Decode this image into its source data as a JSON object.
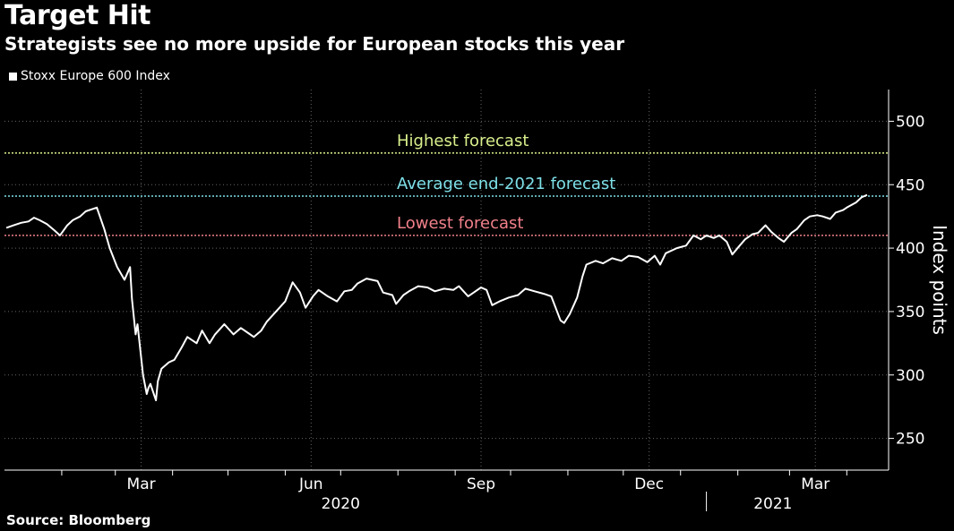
{
  "header": {
    "title": "Target Hit",
    "subtitle": "Strategists see no more upside for European stocks this year"
  },
  "legend": {
    "label": "Stoxx Europe 600 Index"
  },
  "source": "Source: Bloomberg",
  "colors": {
    "background": "#000000",
    "series": "#ffffff",
    "highest": "#d8ef8c",
    "average": "#7ee0e8",
    "lowest": "#f0808a",
    "grid": "#666666"
  },
  "chart_data": {
    "type": "line",
    "title": "Target Hit",
    "subtitle": "Strategists see no more upside for European stocks this year",
    "ylabel": "Index points",
    "ylim": [
      225,
      525
    ],
    "yticks": [
      250,
      300,
      350,
      400,
      450,
      500
    ],
    "xlim": [
      "2020-01-01",
      "2021-04-12"
    ],
    "xticks": [
      {
        "label": "Mar",
        "date": "2020-03-15"
      },
      {
        "label": "Jun",
        "date": "2020-06-15"
      },
      {
        "label": "Sep",
        "date": "2020-09-15"
      },
      {
        "label": "Dec",
        "date": "2020-12-15"
      },
      {
        "label": "Mar",
        "date": "2021-03-15"
      }
    ],
    "years": [
      {
        "label": "2020",
        "date": "2020-07-01"
      },
      {
        "label": "2021",
        "date": "2021-02-20"
      }
    ],
    "year_separator": "2021-01-15",
    "grid": true,
    "legend_position": "top-left",
    "reference_lines": [
      {
        "name": "Highest forecast",
        "value": 475,
        "color_key": "highest"
      },
      {
        "name": "Average end-2021 forecast",
        "value": 441,
        "color_key": "average"
      },
      {
        "name": "Lowest forecast",
        "value": 410,
        "color_key": "lowest"
      }
    ],
    "series": [
      {
        "name": "Stoxx Europe 600 Index",
        "points": [
          [
            "2020-01-02",
            416
          ],
          [
            "2020-01-06",
            418
          ],
          [
            "2020-01-10",
            420
          ],
          [
            "2020-01-14",
            421
          ],
          [
            "2020-01-17",
            424
          ],
          [
            "2020-01-20",
            422
          ],
          [
            "2020-01-24",
            419
          ],
          [
            "2020-01-28",
            414
          ],
          [
            "2020-01-31",
            410
          ],
          [
            "2020-02-04",
            418
          ],
          [
            "2020-02-07",
            422
          ],
          [
            "2020-02-11",
            425
          ],
          [
            "2020-02-14",
            429
          ],
          [
            "2020-02-18",
            431
          ],
          [
            "2020-02-20",
            432
          ],
          [
            "2020-02-24",
            415
          ],
          [
            "2020-02-27",
            400
          ],
          [
            "2020-03-02",
            385
          ],
          [
            "2020-03-06",
            375
          ],
          [
            "2020-03-09",
            385
          ],
          [
            "2020-03-10",
            360
          ],
          [
            "2020-03-12",
            332
          ],
          [
            "2020-03-13",
            340
          ],
          [
            "2020-03-16",
            300
          ],
          [
            "2020-03-18",
            285
          ],
          [
            "2020-03-19",
            290
          ],
          [
            "2020-03-20",
            293
          ],
          [
            "2020-03-23",
            280
          ],
          [
            "2020-03-24",
            295
          ],
          [
            "2020-03-26",
            305
          ],
          [
            "2020-03-30",
            310
          ],
          [
            "2020-04-02",
            312
          ],
          [
            "2020-04-06",
            322
          ],
          [
            "2020-04-09",
            330
          ],
          [
            "2020-04-14",
            325
          ],
          [
            "2020-04-17",
            335
          ],
          [
            "2020-04-21",
            325
          ],
          [
            "2020-04-24",
            332
          ],
          [
            "2020-04-29",
            340
          ],
          [
            "2020-05-04",
            332
          ],
          [
            "2020-05-08",
            337
          ],
          [
            "2020-05-12",
            333
          ],
          [
            "2020-05-15",
            330
          ],
          [
            "2020-05-19",
            335
          ],
          [
            "2020-05-22",
            342
          ],
          [
            "2020-05-27",
            350
          ],
          [
            "2020-06-01",
            358
          ],
          [
            "2020-06-05",
            373
          ],
          [
            "2020-06-09",
            365
          ],
          [
            "2020-06-12",
            353
          ],
          [
            "2020-06-16",
            362
          ],
          [
            "2020-06-19",
            367
          ],
          [
            "2020-06-24",
            362
          ],
          [
            "2020-06-29",
            358
          ],
          [
            "2020-07-03",
            366
          ],
          [
            "2020-07-07",
            367
          ],
          [
            "2020-07-10",
            372
          ],
          [
            "2020-07-15",
            376
          ],
          [
            "2020-07-21",
            374
          ],
          [
            "2020-07-24",
            365
          ],
          [
            "2020-07-29",
            363
          ],
          [
            "2020-07-31",
            356
          ],
          [
            "2020-08-04",
            363
          ],
          [
            "2020-08-07",
            366
          ],
          [
            "2020-08-12",
            370
          ],
          [
            "2020-08-17",
            369
          ],
          [
            "2020-08-21",
            366
          ],
          [
            "2020-08-26",
            368
          ],
          [
            "2020-08-31",
            367
          ],
          [
            "2020-09-03",
            370
          ],
          [
            "2020-09-08",
            362
          ],
          [
            "2020-09-11",
            365
          ],
          [
            "2020-09-15",
            369
          ],
          [
            "2020-09-18",
            367
          ],
          [
            "2020-09-21",
            355
          ],
          [
            "2020-09-25",
            358
          ],
          [
            "2020-09-30",
            361
          ],
          [
            "2020-10-05",
            363
          ],
          [
            "2020-10-09",
            368
          ],
          [
            "2020-10-14",
            366
          ],
          [
            "2020-10-19",
            364
          ],
          [
            "2020-10-23",
            362
          ],
          [
            "2020-10-28",
            343
          ],
          [
            "2020-10-30",
            341
          ],
          [
            "2020-11-02",
            348
          ],
          [
            "2020-11-06",
            361
          ],
          [
            "2020-11-09",
            378
          ],
          [
            "2020-11-11",
            387
          ],
          [
            "2020-11-16",
            390
          ],
          [
            "2020-11-20",
            388
          ],
          [
            "2020-11-25",
            392
          ],
          [
            "2020-11-30",
            390
          ],
          [
            "2020-12-04",
            394
          ],
          [
            "2020-12-09",
            393
          ],
          [
            "2020-12-14",
            389
          ],
          [
            "2020-12-18",
            394
          ],
          [
            "2020-12-21",
            387
          ],
          [
            "2020-12-24",
            396
          ],
          [
            "2020-12-30",
            400
          ],
          [
            "2021-01-04",
            402
          ],
          [
            "2021-01-08",
            410
          ],
          [
            "2021-01-12",
            407
          ],
          [
            "2021-01-15",
            410
          ],
          [
            "2021-01-19",
            408
          ],
          [
            "2021-01-22",
            410
          ],
          [
            "2021-01-26",
            405
          ],
          [
            "2021-01-29",
            395
          ],
          [
            "2021-02-02",
            402
          ],
          [
            "2021-02-05",
            407
          ],
          [
            "2021-02-09",
            411
          ],
          [
            "2021-02-12",
            412
          ],
          [
            "2021-02-16",
            418
          ],
          [
            "2021-02-19",
            413
          ],
          [
            "2021-02-23",
            408
          ],
          [
            "2021-02-26",
            405
          ],
          [
            "2021-03-02",
            412
          ],
          [
            "2021-03-05",
            415
          ],
          [
            "2021-03-09",
            422
          ],
          [
            "2021-03-12",
            425
          ],
          [
            "2021-03-16",
            426
          ],
          [
            "2021-03-19",
            425
          ],
          [
            "2021-03-23",
            423
          ],
          [
            "2021-03-26",
            428
          ],
          [
            "2021-03-30",
            430
          ],
          [
            "2021-04-01",
            432
          ],
          [
            "2021-04-06",
            436
          ],
          [
            "2021-04-09",
            440
          ],
          [
            "2021-04-12",
            442
          ]
        ]
      }
    ]
  }
}
